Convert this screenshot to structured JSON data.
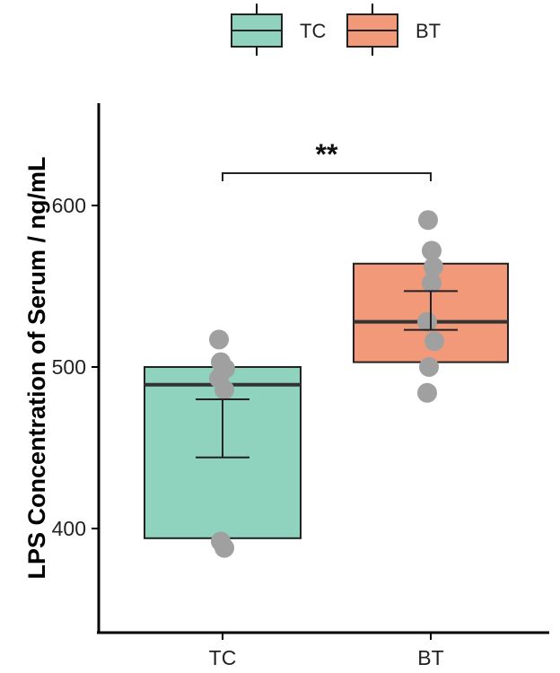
{
  "chart_data": {
    "type": "box",
    "title": "",
    "xlabel": "",
    "ylabel": "LPS Concentration of Serum / ng/mL",
    "ylim": [
      335,
      660
    ],
    "yticks": [
      400,
      500,
      600
    ],
    "categories": [
      "TC",
      "BT"
    ],
    "legend": {
      "position": "top",
      "entries": [
        {
          "label": "TC",
          "color": "#8fd3bf"
        },
        {
          "label": "BT",
          "color": "#f2997a"
        }
      ]
    },
    "groups": [
      {
        "name": "TC",
        "color": "#8fd3bf",
        "q1": 394,
        "median": 489,
        "q3": 500,
        "mean_error": {
          "low": 444,
          "high": 480
        },
        "points": [
          517,
          503,
          499,
          493,
          486,
          392,
          388
        ]
      },
      {
        "name": "BT",
        "color": "#f2997a",
        "q1": 503,
        "median": 528,
        "q3": 564,
        "mean_error": {
          "low": 523,
          "high": 547
        },
        "points": [
          591,
          572,
          562,
          552,
          528,
          516,
          500,
          484
        ]
      }
    ],
    "significance": {
      "from": "TC",
      "to": "BT",
      "label": "**",
      "y": 620
    },
    "grid": false,
    "point_color": "#a0a0a0"
  }
}
